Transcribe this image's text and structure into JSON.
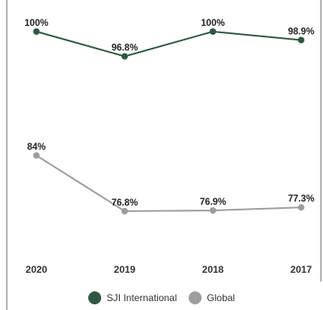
{
  "chart_data": {
    "type": "line",
    "title": "",
    "xlabel": "",
    "ylabel": "",
    "categories": [
      "2020",
      "2019",
      "2018",
      "2017"
    ],
    "ylim": [
      70,
      100
    ],
    "grid": false,
    "legend_position": "bottom",
    "series": [
      {
        "name": "SJI International",
        "color": "#2e5842",
        "values": [
          100,
          96.8,
          100,
          98.9
        ],
        "labels": [
          "100%",
          "96.8%",
          "100%",
          "98.9%"
        ]
      },
      {
        "name": "Global",
        "color": "#9d9d9d",
        "values": [
          84,
          76.8,
          76.9,
          77.3
        ],
        "labels": [
          "84%",
          "76.8%",
          "76.9%",
          "77.3%"
        ]
      }
    ]
  }
}
